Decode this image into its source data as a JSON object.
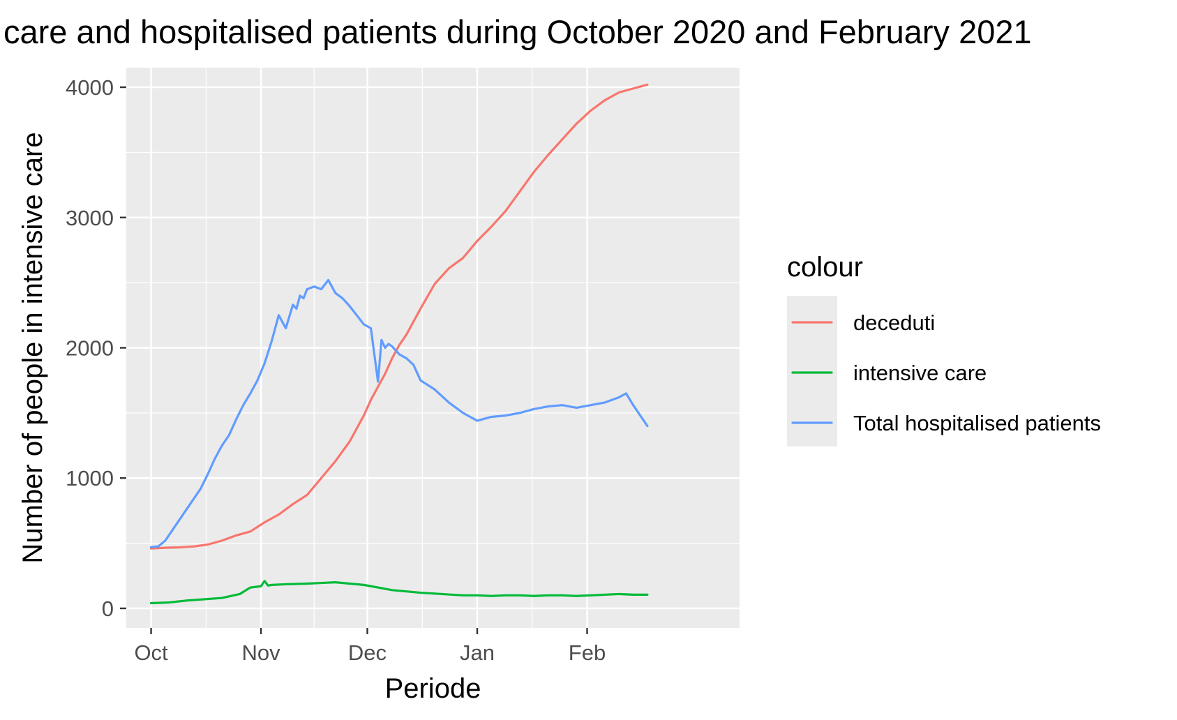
{
  "chart_data": {
    "type": "line",
    "title": "care and hospitalised patients during October 2020 and February 2021",
    "xlabel": "Periode",
    "ylabel": "Number of people in intensive care",
    "ylim": [
      -150,
      4150
    ],
    "yticks": [
      0,
      1000,
      2000,
      3000,
      4000
    ],
    "ytick_labels": [
      "0",
      "1000",
      "2000",
      "3000",
      "4000"
    ],
    "xlim_days": [
      -7,
      166
    ],
    "xticks_days": [
      0,
      31,
      61,
      92,
      123
    ],
    "xtick_labels": [
      "Oct",
      "Nov",
      "Dec",
      "Jan",
      "Feb"
    ],
    "x_start": "2020-10-01",
    "x_unit": "days since 2020-10-01",
    "legend": {
      "title": "colour",
      "position": "right"
    },
    "series": [
      {
        "name": "deceduti",
        "color": "#F8766D",
        "x": [
          0,
          4,
          8,
          12,
          16,
          20,
          24,
          28,
          32,
          36,
          40,
          44,
          48,
          52,
          56,
          60,
          62,
          64,
          66,
          68,
          70,
          72,
          74,
          76,
          80,
          84,
          88,
          92,
          96,
          100,
          104,
          108,
          112,
          116,
          120,
          124,
          128,
          132,
          136,
          140
        ],
        "y": [
          460,
          465,
          468,
          475,
          490,
          520,
          560,
          590,
          660,
          720,
          800,
          870,
          1000,
          1130,
          1280,
          1480,
          1600,
          1700,
          1800,
          1920,
          2020,
          2100,
          2200,
          2300,
          2490,
          2610,
          2690,
          2820,
          2930,
          3050,
          3200,
          3350,
          3480,
          3600,
          3720,
          3820,
          3900,
          3960,
          3990,
          4020
        ]
      },
      {
        "name": "intensive care",
        "color": "#00BA38",
        "x": [
          0,
          5,
          10,
          15,
          20,
          25,
          28,
          31,
          32,
          33,
          34,
          38,
          44,
          48,
          52,
          56,
          60,
          64,
          68,
          72,
          76,
          82,
          88,
          92,
          96,
          100,
          104,
          108,
          112,
          116,
          120,
          124,
          128,
          132,
          136,
          140
        ],
        "y": [
          40,
          45,
          60,
          70,
          80,
          110,
          160,
          170,
          210,
          175,
          180,
          185,
          190,
          195,
          200,
          190,
          180,
          160,
          140,
          130,
          120,
          110,
          100,
          100,
          95,
          100,
          100,
          95,
          100,
          100,
          95,
          100,
          105,
          110,
          105,
          105
        ]
      },
      {
        "name": "Total hospitalised patients",
        "color": "#619CFF",
        "x": [
          0,
          2,
          4,
          6,
          8,
          10,
          12,
          14,
          16,
          18,
          20,
          22,
          24,
          26,
          28,
          30,
          32,
          34,
          36,
          38,
          40,
          41,
          42,
          43,
          44,
          46,
          48,
          50,
          52,
          54,
          56,
          58,
          60,
          62,
          64,
          65,
          66,
          67,
          68,
          70,
          72,
          74,
          76,
          80,
          84,
          88,
          92,
          96,
          100,
          104,
          108,
          112,
          116,
          120,
          124,
          128,
          132,
          134,
          136,
          138,
          140
        ],
        "y": [
          470,
          475,
          520,
          600,
          680,
          760,
          840,
          920,
          1030,
          1150,
          1250,
          1330,
          1450,
          1560,
          1650,
          1750,
          1880,
          2050,
          2250,
          2150,
          2330,
          2300,
          2400,
          2380,
          2450,
          2470,
          2450,
          2520,
          2420,
          2380,
          2320,
          2250,
          2180,
          2150,
          1740,
          2060,
          2000,
          2030,
          2010,
          1950,
          1920,
          1870,
          1750,
          1680,
          1580,
          1500,
          1440,
          1470,
          1480,
          1500,
          1530,
          1550,
          1560,
          1540,
          1560,
          1580,
          1620,
          1650,
          1560,
          1480,
          1400
        ]
      }
    ]
  }
}
